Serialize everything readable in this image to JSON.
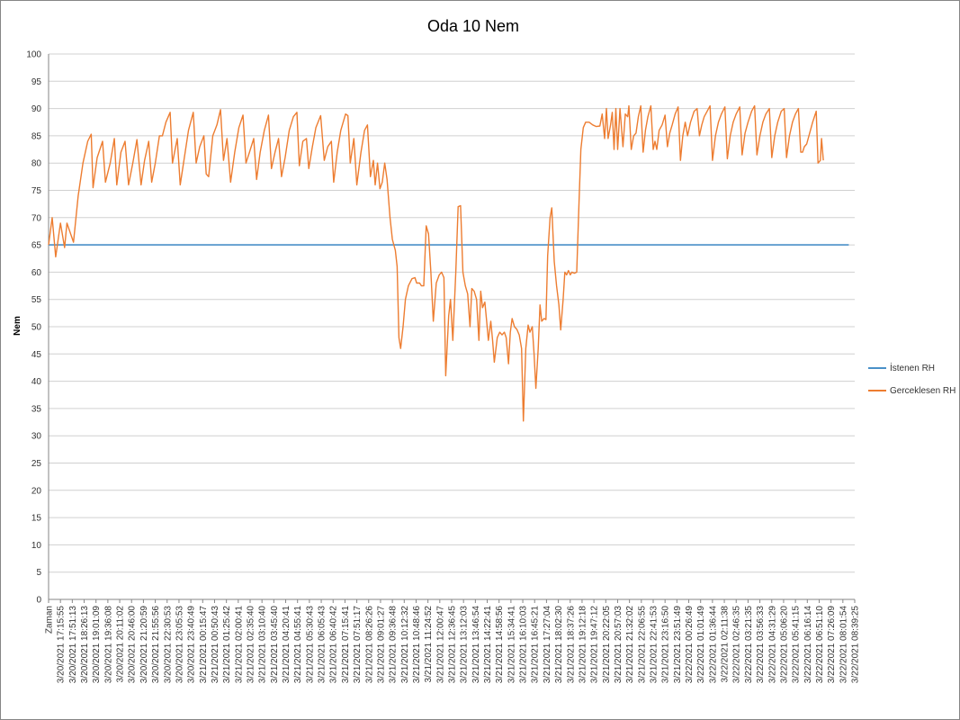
{
  "chart_data": {
    "type": "line",
    "title": "Oda 10 Nem",
    "ylabel": "Nem",
    "ylim": [
      0,
      100
    ],
    "ytick_step": 5,
    "grid": true,
    "legend_position": "right",
    "x_tick_labels": [
      "Zaman",
      "3/20/2021 17:15:55",
      "3/20/2021 17:51:13",
      "3/20/2021 18:26:13",
      "3/20/2021 19:01:09",
      "3/20/2021 19:36:08",
      "3/20/2021 20:11:02",
      "3/20/2021 20:46:00",
      "3/20/2021 21:20:59",
      "3/20/2021 21:55:56",
      "3/20/2021 22:30:53",
      "3/20/2021 23:05:53",
      "3/20/2021 23:40:49",
      "3/21/2021 00:15:47",
      "3/21/2021 00:50:43",
      "3/21/2021 01:25:42",
      "3/21/2021 02:00:41",
      "3/21/2021 02:35:40",
      "3/21/2021 03:10:40",
      "3/21/2021 03:45:40",
      "3/21/2021 04:20:41",
      "3/21/2021 04:55:41",
      "3/21/2021 05:30:43",
      "3/21/2021 06:05:43",
      "3/21/2021 06:40:42",
      "3/21/2021 07:15:41",
      "3/21/2021 07:51:17",
      "3/21/2021 08:26:26",
      "3/21/2021 09:01:27",
      "3/21/2021 09:36:48",
      "3/21/2021 10:12:32",
      "3/21/2021 10:48:46",
      "3/21/2021 11:24:52",
      "3/21/2021 12:00:47",
      "3/21/2021 12:36:45",
      "3/21/2021 13:12:03",
      "3/21/2021 13:46:54",
      "3/21/2021 14:22:41",
      "3/21/2021 14:58:56",
      "3/21/2021 15:34:41",
      "3/21/2021 16:10:03",
      "3/21/2021 16:45:21",
      "3/21/2021 17:27:04",
      "3/21/2021 18:02:30",
      "3/21/2021 18:37:26",
      "3/21/2021 19:12:18",
      "3/21/2021 19:47:12",
      "3/21/2021 20:22:05",
      "3/21/2021 20:57:03",
      "3/21/2021 21:32:02",
      "3/21/2021 22:06:55",
      "3/21/2021 22:41:53",
      "3/21/2021 23:16:50",
      "3/21/2021 23:51:49",
      "3/22/2021 00:26:49",
      "3/22/2021 01:01:49",
      "3/22/2021 01:36:44",
      "3/22/2021 02:11:38",
      "3/22/2021 02:46:35",
      "3/22/2021 03:21:35",
      "3/22/2021 03:56:33",
      "3/22/2021 04:31:29",
      "3/22/2021 05:06:20",
      "3/22/2021 05:41:15",
      "3/22/2021 06:16:14",
      "3/22/2021 06:51:10",
      "3/22/2021 07:26:09",
      "3/22/2021 08:01:54",
      "3/22/2021 08:39:25"
    ],
    "series": [
      {
        "name": "İstenen RH",
        "color": "#4a90c8",
        "values": [
          [
            0,
            65
          ],
          [
            67.5,
            65
          ]
        ]
      },
      {
        "name": "Gerceklesen RH",
        "color": "#ed7d31",
        "values": [
          [
            0,
            65
          ],
          [
            0.3,
            70
          ],
          [
            0.6,
            62.8
          ],
          [
            1.0,
            69
          ],
          [
            1.35,
            64.5
          ],
          [
            1.55,
            69
          ],
          [
            2.1,
            65.5
          ],
          [
            2.5,
            74
          ],
          [
            2.9,
            80
          ],
          [
            3.3,
            84
          ],
          [
            3.6,
            85.3
          ],
          [
            3.75,
            75.5
          ],
          [
            4.1,
            81
          ],
          [
            4.55,
            84
          ],
          [
            4.8,
            76.5
          ],
          [
            5.2,
            80
          ],
          [
            5.55,
            84.5
          ],
          [
            5.75,
            76
          ],
          [
            6.1,
            82
          ],
          [
            6.45,
            84
          ],
          [
            6.75,
            76
          ],
          [
            7.1,
            80
          ],
          [
            7.45,
            84.3
          ],
          [
            7.8,
            76
          ],
          [
            8.1,
            80.5
          ],
          [
            8.45,
            84
          ],
          [
            8.7,
            76.5
          ],
          [
            9.0,
            80
          ],
          [
            9.35,
            85
          ],
          [
            9.6,
            85
          ],
          [
            9.9,
            87.5
          ],
          [
            10.25,
            89.3
          ],
          [
            10.45,
            80
          ],
          [
            10.85,
            84.5
          ],
          [
            11.1,
            76
          ],
          [
            11.45,
            81
          ],
          [
            11.8,
            86
          ],
          [
            12.2,
            89.3
          ],
          [
            12.45,
            80
          ],
          [
            12.75,
            83
          ],
          [
            13.1,
            85
          ],
          [
            13.3,
            78
          ],
          [
            13.5,
            77.5
          ],
          [
            13.85,
            85
          ],
          [
            14.2,
            87
          ],
          [
            14.5,
            89.8
          ],
          [
            14.75,
            80.5
          ],
          [
            15.05,
            84.5
          ],
          [
            15.35,
            76.5
          ],
          [
            15.7,
            82
          ],
          [
            16.05,
            86.5
          ],
          [
            16.4,
            88.8
          ],
          [
            16.65,
            80
          ],
          [
            16.95,
            82
          ],
          [
            17.3,
            84.5
          ],
          [
            17.55,
            77
          ],
          [
            17.85,
            82
          ],
          [
            18.2,
            86
          ],
          [
            18.55,
            88.8
          ],
          [
            18.8,
            79
          ],
          [
            19.1,
            82
          ],
          [
            19.4,
            84.5
          ],
          [
            19.65,
            77.5
          ],
          [
            19.95,
            81
          ],
          [
            20.3,
            86
          ],
          [
            20.65,
            88.5
          ],
          [
            20.95,
            89.3
          ],
          [
            21.15,
            79.5
          ],
          [
            21.45,
            84
          ],
          [
            21.75,
            84.5
          ],
          [
            21.95,
            79
          ],
          [
            22.25,
            83
          ],
          [
            22.55,
            86.5
          ],
          [
            22.95,
            88.7
          ],
          [
            23.25,
            80.5
          ],
          [
            23.55,
            83
          ],
          [
            23.85,
            84
          ],
          [
            24.05,
            76.5
          ],
          [
            24.35,
            82
          ],
          [
            24.65,
            86
          ],
          [
            25.05,
            89
          ],
          [
            25.25,
            88.7
          ],
          [
            25.45,
            80
          ],
          [
            25.75,
            84.5
          ],
          [
            26.0,
            76
          ],
          [
            26.35,
            82
          ],
          [
            26.65,
            86
          ],
          [
            26.9,
            87
          ],
          [
            27.15,
            77.5
          ],
          [
            27.4,
            80.5
          ],
          [
            27.55,
            76
          ],
          [
            27.75,
            80
          ],
          [
            27.95,
            75.3
          ],
          [
            28.15,
            76.5
          ],
          [
            28.35,
            80
          ],
          [
            28.55,
            77
          ],
          [
            28.8,
            70
          ],
          [
            29.0,
            66
          ],
          [
            29.25,
            64
          ],
          [
            29.4,
            61
          ],
          [
            29.55,
            48
          ],
          [
            29.7,
            46
          ],
          [
            29.9,
            50
          ],
          [
            30.1,
            55
          ],
          [
            30.35,
            57.5
          ],
          [
            30.65,
            58.8
          ],
          [
            30.9,
            59
          ],
          [
            31.05,
            58
          ],
          [
            31.3,
            58
          ],
          [
            31.45,
            57.5
          ],
          [
            31.65,
            57.5
          ],
          [
            31.85,
            68.5
          ],
          [
            32.05,
            67
          ],
          [
            32.25,
            60
          ],
          [
            32.45,
            51
          ],
          [
            32.7,
            58
          ],
          [
            32.95,
            59.5
          ],
          [
            33.15,
            60
          ],
          [
            33.35,
            59
          ],
          [
            33.5,
            41
          ],
          [
            33.75,
            52
          ],
          [
            33.9,
            55
          ],
          [
            34.1,
            47.5
          ],
          [
            34.35,
            60
          ],
          [
            34.55,
            72
          ],
          [
            34.75,
            72.2
          ],
          [
            34.95,
            60
          ],
          [
            35.15,
            57.5
          ],
          [
            35.35,
            56
          ],
          [
            35.55,
            50
          ],
          [
            35.7,
            57
          ],
          [
            35.9,
            56.5
          ],
          [
            36.1,
            55
          ],
          [
            36.3,
            47.5
          ],
          [
            36.45,
            56.5
          ],
          [
            36.6,
            53.5
          ],
          [
            36.8,
            54.5
          ],
          [
            36.95,
            51
          ],
          [
            37.1,
            47.5
          ],
          [
            37.3,
            51
          ],
          [
            37.45,
            47.5
          ],
          [
            37.6,
            43.5
          ],
          [
            37.85,
            48
          ],
          [
            38.05,
            49
          ],
          [
            38.25,
            48.5
          ],
          [
            38.45,
            49
          ],
          [
            38.6,
            48
          ],
          [
            38.8,
            43.2
          ],
          [
            38.95,
            49
          ],
          [
            39.1,
            51.5
          ],
          [
            39.3,
            50
          ],
          [
            39.5,
            49.5
          ],
          [
            39.7,
            48.5
          ],
          [
            39.9,
            46
          ],
          [
            40.05,
            32.7
          ],
          [
            40.25,
            46
          ],
          [
            40.45,
            50.3
          ],
          [
            40.6,
            49
          ],
          [
            40.8,
            50
          ],
          [
            40.95,
            45
          ],
          [
            41.1,
            38.7
          ],
          [
            41.3,
            46
          ],
          [
            41.45,
            54
          ],
          [
            41.6,
            51
          ],
          [
            41.8,
            51.5
          ],
          [
            41.95,
            51.3
          ],
          [
            42.1,
            63
          ],
          [
            42.3,
            70
          ],
          [
            42.45,
            71.8
          ],
          [
            42.65,
            62
          ],
          [
            42.85,
            57.5
          ],
          [
            43.05,
            54
          ],
          [
            43.2,
            49.4
          ],
          [
            43.4,
            55
          ],
          [
            43.55,
            60
          ],
          [
            43.7,
            59.5
          ],
          [
            43.85,
            60.3
          ],
          [
            44.0,
            59.5
          ],
          [
            44.15,
            60
          ],
          [
            44.35,
            59.8
          ],
          [
            44.55,
            60
          ],
          [
            44.75,
            73
          ],
          [
            44.9,
            82.5
          ],
          [
            45.1,
            86.5
          ],
          [
            45.3,
            87.5
          ],
          [
            45.6,
            87.5
          ],
          [
            45.9,
            87
          ],
          [
            46.2,
            86.7
          ],
          [
            46.5,
            86.8
          ],
          [
            46.7,
            89
          ],
          [
            46.9,
            84.5
          ],
          [
            47.05,
            90
          ],
          [
            47.2,
            84.5
          ],
          [
            47.4,
            87
          ],
          [
            47.55,
            89.3
          ],
          [
            47.7,
            82.5
          ],
          [
            47.85,
            90
          ],
          [
            48.0,
            82.5
          ],
          [
            48.2,
            90
          ],
          [
            48.45,
            83
          ],
          [
            48.65,
            89
          ],
          [
            48.85,
            88.5
          ],
          [
            48.95,
            90.5
          ],
          [
            49.15,
            82.5
          ],
          [
            49.35,
            85
          ],
          [
            49.55,
            85.5
          ],
          [
            49.75,
            88.5
          ],
          [
            49.95,
            90.5
          ],
          [
            50.15,
            82
          ],
          [
            50.35,
            86
          ],
          [
            50.55,
            88.5
          ],
          [
            50.8,
            90.5
          ],
          [
            51.0,
            82.5
          ],
          [
            51.15,
            84
          ],
          [
            51.3,
            82.5
          ],
          [
            51.5,
            86
          ],
          [
            51.75,
            87
          ],
          [
            52.0,
            88.8
          ],
          [
            52.2,
            83
          ],
          [
            52.4,
            85.5
          ],
          [
            52.6,
            87
          ],
          [
            52.85,
            89
          ],
          [
            53.1,
            90.3
          ],
          [
            53.3,
            80.5
          ],
          [
            53.5,
            85
          ],
          [
            53.7,
            87.5
          ],
          [
            53.9,
            85
          ],
          [
            54.15,
            87.5
          ],
          [
            54.45,
            89.5
          ],
          [
            54.7,
            90
          ],
          [
            54.9,
            85
          ],
          [
            55.1,
            87
          ],
          [
            55.3,
            88.5
          ],
          [
            55.55,
            89.5
          ],
          [
            55.8,
            90.5
          ],
          [
            56.0,
            80.5
          ],
          [
            56.25,
            85
          ],
          [
            56.5,
            87.5
          ],
          [
            56.75,
            89
          ],
          [
            57.05,
            90.3
          ],
          [
            57.25,
            80.8
          ],
          [
            57.5,
            85
          ],
          [
            57.75,
            87.5
          ],
          [
            58.0,
            89
          ],
          [
            58.3,
            90.3
          ],
          [
            58.5,
            81.5
          ],
          [
            58.75,
            85.5
          ],
          [
            59.0,
            87.5
          ],
          [
            59.3,
            89.5
          ],
          [
            59.55,
            90.5
          ],
          [
            59.75,
            81.5
          ],
          [
            60.0,
            85
          ],
          [
            60.25,
            87.5
          ],
          [
            60.5,
            89
          ],
          [
            60.8,
            90
          ],
          [
            61.0,
            81
          ],
          [
            61.25,
            85
          ],
          [
            61.5,
            87.5
          ],
          [
            61.8,
            89.5
          ],
          [
            62.05,
            90
          ],
          [
            62.25,
            81
          ],
          [
            62.5,
            85
          ],
          [
            62.75,
            87.5
          ],
          [
            63.0,
            89
          ],
          [
            63.25,
            90
          ],
          [
            63.45,
            82
          ],
          [
            63.6,
            82
          ],
          [
            63.75,
            83
          ],
          [
            63.95,
            83.5
          ],
          [
            64.2,
            85.5
          ],
          [
            64.45,
            87.5
          ],
          [
            64.75,
            89.5
          ],
          [
            64.9,
            80
          ],
          [
            65.1,
            80.5
          ],
          [
            65.2,
            84.5
          ],
          [
            65.35,
            80.5
          ]
        ]
      }
    ]
  }
}
